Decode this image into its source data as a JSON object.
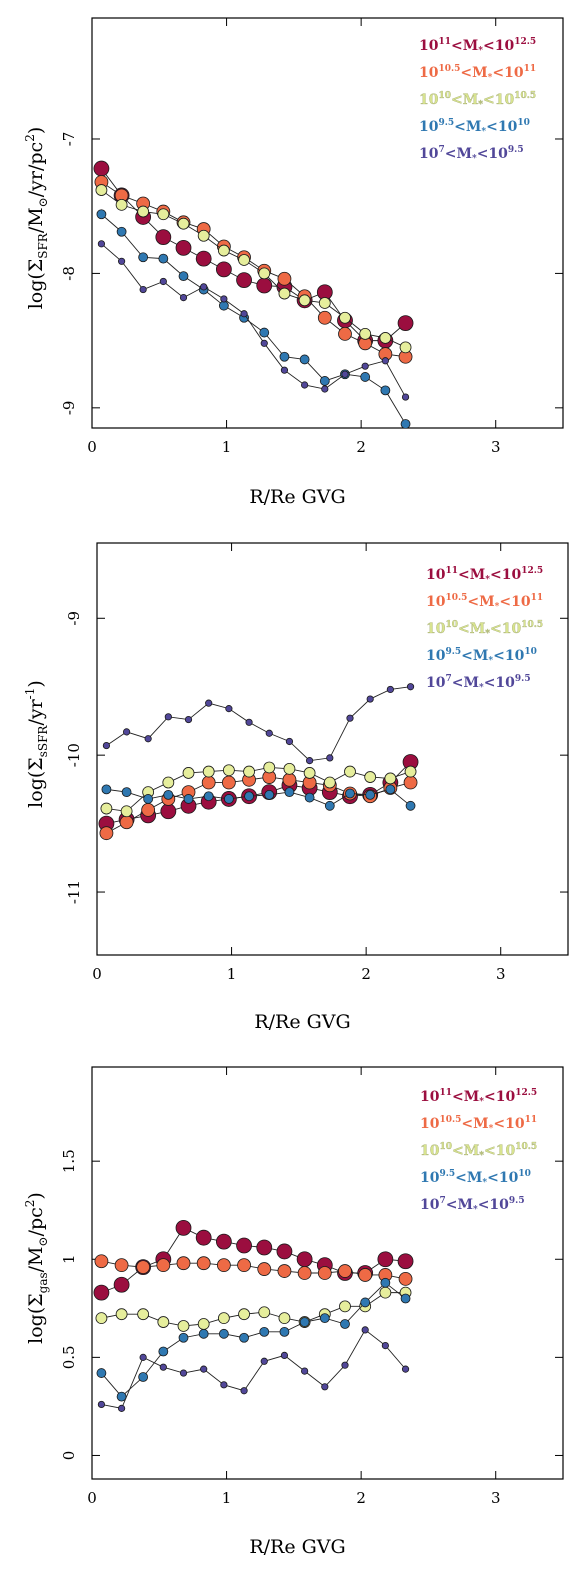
{
  "charts": [
    {
      "ylabel": "log(Σ_SFR/M_⊙/yr/pc²)",
      "ylabel_main": "log(Σ",
      "ylabel_sub": "SFR",
      "ylabel_rest": "/M",
      "ylabel_sun": "⊙",
      "ylabel_rest2": "/yr/pc",
      "ylabel_sup": "2",
      "ylabel_close": ")",
      "xlabel": "R/Re GVG"
    },
    {
      "ylabel": "log(Σ_sSFR/yr⁻¹)",
      "ylabel_main": "log(Σ",
      "ylabel_sub": "sSFR",
      "ylabel_rest": "/yr",
      "ylabel_sup": "-1",
      "ylabel_close": ")",
      "xlabel": "R/Re GVG"
    },
    {
      "ylabel": "log(Σ_gas/M_⊙/pc²)",
      "ylabel_main": "log(Σ",
      "ylabel_sub": "gas",
      "ylabel_rest": "/M",
      "ylabel_sun": "⊙",
      "ylabel_rest2": "/pc",
      "ylabel_sup": "2",
      "ylabel_close": ")",
      "xlabel": "R/Re GVG"
    }
  ],
  "legend": [
    {
      "pre": "10",
      "pre_sup": "11",
      "mid": "<M",
      "sub": "*",
      "lt": "<10",
      "post_sup": "12.5",
      "color": "#9b0e3f"
    },
    {
      "pre": "10",
      "pre_sup": "10.5",
      "mid": "<M",
      "sub": "*",
      "lt": "<10",
      "post_sup": "11",
      "color": "#ee6a45"
    },
    {
      "pre": "10",
      "pre_sup": "10",
      "mid": "<M",
      "sub": "*",
      "lt": "<10",
      "post_sup": "10.5",
      "color": "#d8e38f"
    },
    {
      "pre": "10",
      "pre_sup": "9.5",
      "mid": "<M",
      "sub": "*",
      "lt": "<10",
      "post_sup": "10",
      "color": "#2f78b1"
    },
    {
      "pre": "10",
      "pre_sup": "7",
      "mid": "<M",
      "sub": "*",
      "lt": "<10",
      "post_sup": "9.5",
      "color": "#514799"
    }
  ],
  "chart_data": [
    {
      "type": "line",
      "xlabel": "R/Re GVG",
      "ylabel": "log(Σ_SFR/M_⊙/yr/pc²)",
      "xlim": [
        0,
        3.5
      ],
      "ylim": [
        -9.15,
        -6.1
      ],
      "xticks": [
        0,
        1,
        2,
        3
      ],
      "yticks": [
        -9,
        -8,
        -7
      ],
      "legend_position": "top-right",
      "x": [
        0.07,
        0.22,
        0.38,
        0.53,
        0.68,
        0.83,
        0.98,
        1.13,
        1.28,
        1.43,
        1.58,
        1.73,
        1.88,
        2.03,
        2.18,
        2.33
      ],
      "series": [
        {
          "name": "10^11<M*<10^12.5",
          "color": "#9b0e3f",
          "marker_size": 7.5,
          "values": [
            -7.22,
            -7.42,
            -7.58,
            -7.73,
            -7.81,
            -7.89,
            -7.97,
            -8.05,
            -8.09,
            -8.1,
            -8.2,
            -8.14,
            -8.35,
            -8.5,
            -8.5,
            -8.37
          ]
        },
        {
          "name": "10^10.5<M*<10^11",
          "color": "#ee6a45",
          "marker_size": 6.5,
          "values": [
            -7.32,
            -7.42,
            -7.48,
            -7.54,
            -7.62,
            -7.67,
            -7.8,
            -7.88,
            -7.98,
            -8.04,
            -8.17,
            -8.33,
            -8.45,
            -8.52,
            -8.6,
            -8.62
          ]
        },
        {
          "name": "10^10<M*<10^10.5",
          "color": "#e6ee9c",
          "marker_size": 5.5,
          "values": [
            -7.38,
            -7.49,
            -7.54,
            -7.56,
            -7.63,
            -7.72,
            -7.83,
            -7.9,
            -8.0,
            -8.15,
            -8.2,
            -8.22,
            -8.33,
            -8.45,
            -8.48,
            -8.55
          ]
        },
        {
          "name": "10^9.5<M*<10^10",
          "color": "#2f78b1",
          "marker_size": 4.5,
          "values": [
            -7.56,
            -7.69,
            -7.88,
            -7.89,
            -8.02,
            -8.12,
            -8.24,
            -8.33,
            -8.44,
            -8.62,
            -8.64,
            -8.8,
            -8.75,
            -8.77,
            -8.87,
            -9.12
          ]
        },
        {
          "name": "10^7<M*<10^9.5",
          "color": "#514799",
          "marker_size": 3.2,
          "values": [
            -7.78,
            -7.91,
            -8.12,
            -8.06,
            -8.18,
            -8.1,
            -8.19,
            -8.3,
            -8.52,
            -8.72,
            -8.83,
            -8.86,
            -8.75,
            -8.69,
            -8.65,
            -8.92
          ]
        }
      ]
    },
    {
      "type": "line",
      "xlabel": "R/Re GVG",
      "ylabel": "log(Σ_sSFR/yr⁻¹)",
      "xlim": [
        0,
        3.5
      ],
      "ylim": [
        -11.46,
        -8.45
      ],
      "xticks": [
        0,
        1,
        2,
        3
      ],
      "yticks": [
        -11,
        -10,
        -9
      ],
      "legend_position": "top-right",
      "x": [
        0.07,
        0.22,
        0.38,
        0.53,
        0.68,
        0.83,
        0.98,
        1.13,
        1.28,
        1.43,
        1.58,
        1.73,
        1.88,
        2.03,
        2.18,
        2.33
      ],
      "series": [
        {
          "name": "10^11<M*<10^12.5",
          "color": "#9b0e3f",
          "marker_size": 7.5,
          "values": [
            -10.5,
            -10.47,
            -10.44,
            -10.41,
            -10.37,
            -10.34,
            -10.32,
            -10.3,
            -10.27,
            -10.22,
            -10.24,
            -10.27,
            -10.3,
            -10.29,
            -10.2,
            -10.05
          ]
        },
        {
          "name": "10^10.5<M*<10^11",
          "color": "#ee6a45",
          "marker_size": 6.5,
          "values": [
            -10.57,
            -10.49,
            -10.4,
            -10.32,
            -10.27,
            -10.2,
            -10.2,
            -10.18,
            -10.16,
            -10.18,
            -10.2,
            -10.22,
            -10.28,
            -10.3,
            -10.24,
            -10.2
          ]
        },
        {
          "name": "10^10<M*<10^10.5",
          "color": "#e6ee9c",
          "marker_size": 5.5,
          "values": [
            -10.39,
            -10.41,
            -10.27,
            -10.2,
            -10.13,
            -10.12,
            -10.11,
            -10.12,
            -10.09,
            -10.1,
            -10.13,
            -10.2,
            -10.12,
            -10.16,
            -10.17,
            -10.12
          ]
        },
        {
          "name": "10^9.5<M*<10^10",
          "color": "#2f78b1",
          "marker_size": 4.5,
          "values": [
            -10.25,
            -10.27,
            -10.32,
            -10.29,
            -10.32,
            -10.3,
            -10.32,
            -10.3,
            -10.29,
            -10.27,
            -10.31,
            -10.37,
            -10.28,
            -10.29,
            -10.25,
            -10.37
          ]
        },
        {
          "name": "10^7<M*<10^9.5",
          "color": "#514799",
          "marker_size": 3.2,
          "values": [
            -9.93,
            -9.83,
            -9.88,
            -9.72,
            -9.74,
            -9.62,
            -9.66,
            -9.76,
            -9.84,
            -9.9,
            -10.04,
            -10.02,
            -9.73,
            -9.59,
            -9.52,
            -9.5
          ]
        }
      ]
    },
    {
      "type": "line",
      "xlabel": "R/Re GVG",
      "ylabel": "log(Σ_gas/M_⊙/pc²)",
      "xlim": [
        0,
        3.5
      ],
      "ylim": [
        -0.12,
        1.98
      ],
      "xticks": [
        0,
        1,
        2,
        3
      ],
      "yticks": [
        0,
        0.5,
        1,
        1.5
      ],
      "legend_position": "top-right",
      "x": [
        0.07,
        0.22,
        0.38,
        0.53,
        0.68,
        0.83,
        0.98,
        1.13,
        1.28,
        1.43,
        1.58,
        1.73,
        1.88,
        2.03,
        2.18,
        2.33
      ],
      "series": [
        {
          "name": "10^11<M*<10^12.5",
          "color": "#9b0e3f",
          "marker_size": 7.5,
          "values": [
            0.83,
            0.87,
            0.96,
            1.0,
            1.16,
            1.11,
            1.09,
            1.07,
            1.06,
            1.04,
            1.0,
            0.97,
            0.93,
            0.93,
            1.0,
            0.99
          ]
        },
        {
          "name": "10^10.5<M*<10^11",
          "color": "#ee6a45",
          "marker_size": 6.5,
          "values": [
            0.99,
            0.97,
            0.96,
            0.97,
            0.98,
            0.98,
            0.97,
            0.97,
            0.95,
            0.94,
            0.93,
            0.93,
            0.94,
            0.92,
            0.92,
            0.9
          ]
        },
        {
          "name": "10^10<M*<10^10.5",
          "color": "#e6ee9c",
          "marker_size": 5.5,
          "values": [
            0.7,
            0.72,
            0.72,
            0.68,
            0.66,
            0.67,
            0.7,
            0.72,
            0.73,
            0.7,
            0.68,
            0.72,
            0.76,
            0.76,
            0.83,
            0.83
          ]
        },
        {
          "name": "10^9.5<M*<10^10",
          "color": "#2f78b1",
          "marker_size": 4.5,
          "values": [
            0.42,
            0.3,
            0.4,
            0.53,
            0.6,
            0.62,
            0.62,
            0.6,
            0.63,
            0.63,
            0.68,
            0.7,
            0.67,
            0.78,
            0.88,
            0.8
          ]
        },
        {
          "name": "10^7<M*<10^9.5",
          "color": "#514799",
          "marker_size": 3.2,
          "values": [
            0.26,
            0.24,
            0.5,
            0.45,
            0.42,
            0.44,
            0.36,
            0.33,
            0.48,
            0.51,
            0.43,
            0.35,
            0.46,
            0.64,
            0.56,
            0.44
          ]
        }
      ]
    }
  ]
}
